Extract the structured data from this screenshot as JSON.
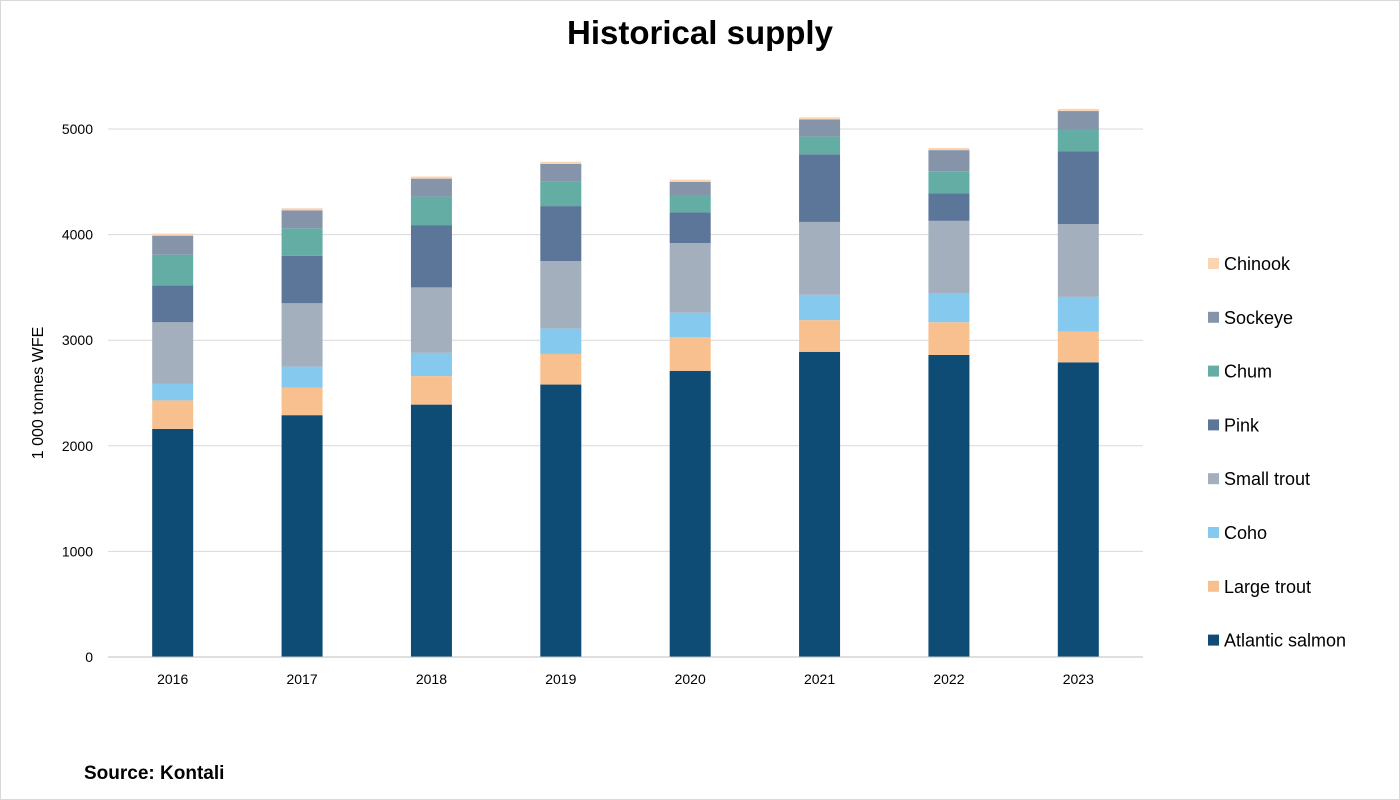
{
  "chart_data": {
    "type": "stacked-bar",
    "title": "Historical supply",
    "ylabel": "1 000 tonnes WFE",
    "xlabel": "",
    "ylim": [
      0,
      5400
    ],
    "yticks": [
      0,
      1000,
      2000,
      3000,
      4000,
      5000
    ],
    "grid": true,
    "legend_position": "right",
    "categories": [
      "2016",
      "2017",
      "2018",
      "2019",
      "2020",
      "2021",
      "2022",
      "2023"
    ],
    "series": [
      {
        "name": "Atlantic salmon",
        "color": "#0e4c75",
        "values": [
          2160,
          2290,
          2390,
          2580,
          2710,
          2890,
          2860,
          2790
        ]
      },
      {
        "name": "Large trout",
        "color": "#f9c08f",
        "values": [
          270,
          260,
          270,
          290,
          320,
          300,
          310,
          290
        ]
      },
      {
        "name": "Coho",
        "color": "#86c9ee",
        "values": [
          160,
          200,
          220,
          240,
          230,
          240,
          270,
          330
        ]
      },
      {
        "name": "Small trout",
        "color": "#a3afbc",
        "values": [
          580,
          600,
          620,
          640,
          660,
          690,
          690,
          690
        ]
      },
      {
        "name": "Pink",
        "color": "#5c7699",
        "values": [
          350,
          450,
          590,
          520,
          290,
          640,
          260,
          690
        ]
      },
      {
        "name": "Chum",
        "color": "#63ada5",
        "values": [
          290,
          260,
          270,
          230,
          160,
          170,
          210,
          210
        ]
      },
      {
        "name": "Sockeye",
        "color": "#8694a9",
        "values": [
          180,
          170,
          170,
          170,
          130,
          160,
          200,
          170
        ]
      },
      {
        "name": "Chinook",
        "color": "#fbd4b4",
        "values": [
          20,
          20,
          20,
          20,
          20,
          20,
          20,
          20
        ]
      }
    ]
  },
  "footer": {
    "source": "Source: Kontali"
  }
}
